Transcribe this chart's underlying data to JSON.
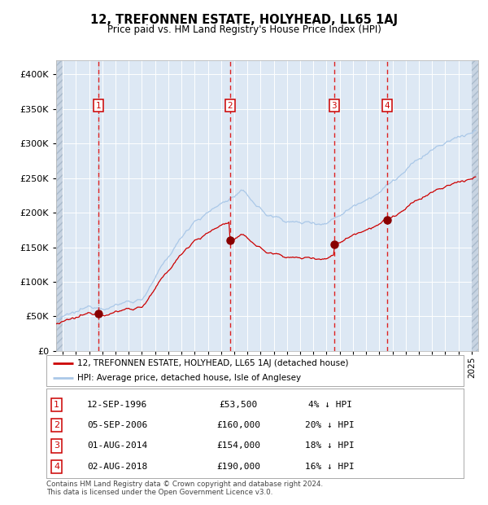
{
  "title": "12, TREFONNEN ESTATE, HOLYHEAD, LL65 1AJ",
  "subtitle": "Price paid vs. HM Land Registry's House Price Index (HPI)",
  "legend_line1": "12, TREFONNEN ESTATE, HOLYHEAD, LL65 1AJ (detached house)",
  "legend_line2": "HPI: Average price, detached house, Isle of Anglesey",
  "footer1": "Contains HM Land Registry data © Crown copyright and database right 2024.",
  "footer2": "This data is licensed under the Open Government Licence v3.0.",
  "purchases": [
    {
      "num": 1,
      "date_label": "12-SEP-1996",
      "date_year": 1996.7,
      "price": 53500,
      "pct": "4%",
      "dir": "↓"
    },
    {
      "num": 2,
      "date_label": "05-SEP-2006",
      "date_year": 2006.67,
      "price": 160000,
      "pct": "20%",
      "dir": "↓"
    },
    {
      "num": 3,
      "date_label": "01-AUG-2014",
      "date_year": 2014.58,
      "price": 154000,
      "pct": "18%",
      "dir": "↓"
    },
    {
      "num": 4,
      "date_label": "02-AUG-2018",
      "date_year": 2018.58,
      "price": 190000,
      "pct": "16%",
      "dir": "↓"
    }
  ],
  "ylim": [
    0,
    420000
  ],
  "xlim_start": 1993.5,
  "xlim_end": 2025.5,
  "hpi_color": "#aac8e8",
  "price_color": "#cc0000",
  "purchase_dot_color": "#880000",
  "plot_bg": "#dde8f4",
  "hatch_bg": "#c8d4e2"
}
